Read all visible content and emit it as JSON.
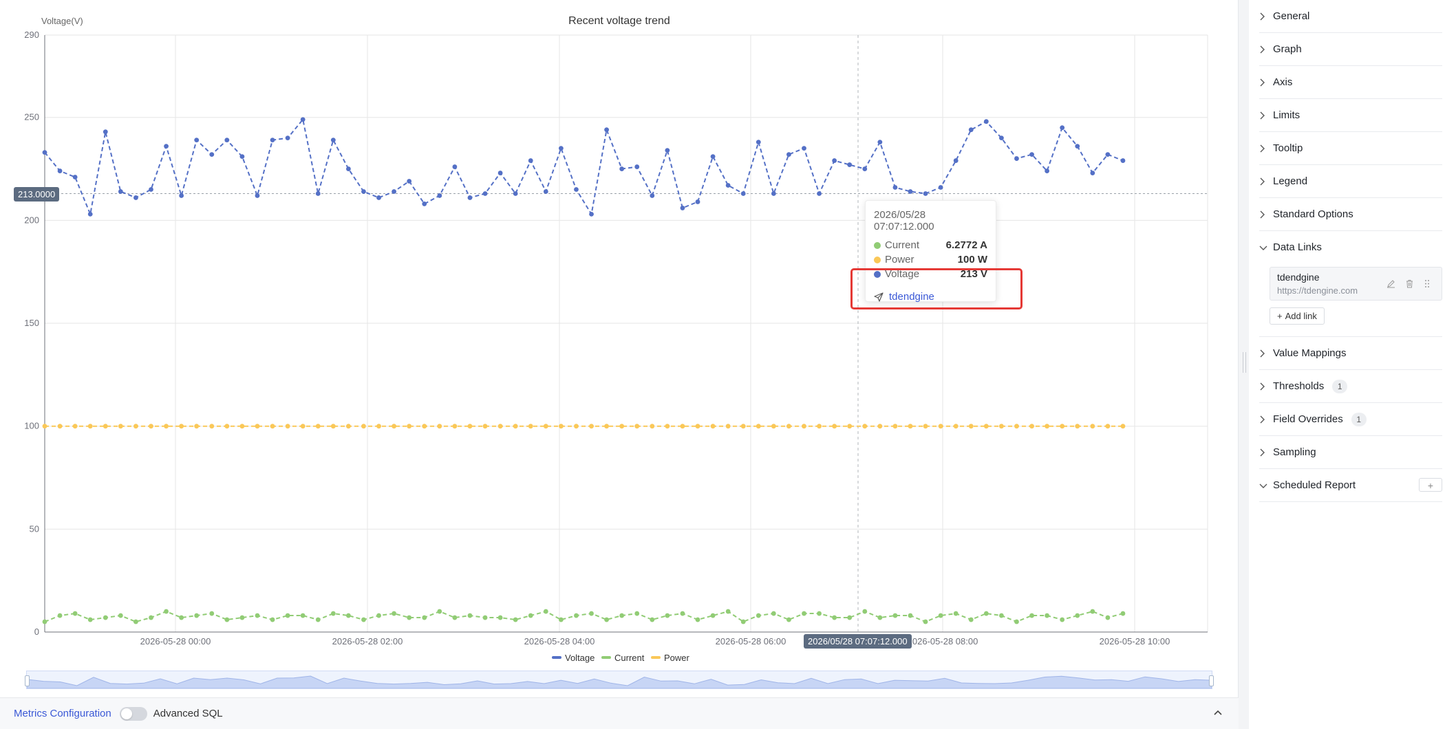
{
  "chart": {
    "title": "Recent voltage trend",
    "y_axis_title": "Voltage(V)",
    "y_pointer_label": "213.0000",
    "x_pointer_label": "2026/05/28 07:07:12.000"
  },
  "tooltip": {
    "time": "2026/05/28 07:07:12.000",
    "rows": [
      {
        "name": "Current",
        "value": "6.2772 A",
        "color": "#91cc75"
      },
      {
        "name": "Power",
        "value": "100 W",
        "color": "#fac858"
      },
      {
        "name": "Voltage",
        "value": "213 V",
        "color": "#5470c6"
      }
    ],
    "link_label": "tdendgine"
  },
  "chart_data": {
    "type": "line",
    "title": "Recent voltage trend",
    "ylabel": "Voltage(V)",
    "xlabel": "",
    "ylim": [
      0,
      290
    ],
    "yticks": [
      0,
      50,
      100,
      150,
      200,
      250,
      290
    ],
    "xticks": [
      "2026-05-28 00:00",
      "2026-05-28 02:00",
      "2026-05-28 04:00",
      "2026-05-28 06:00",
      "2026-05-28 08:00",
      "2026-05-28 10:00"
    ],
    "x_start": "2026-05-27 22:38",
    "x_step_minutes": 9.67,
    "legend": "bottom-center",
    "grid": true,
    "line_style": "dashed",
    "markline_y": 213,
    "crosshair_x": "2026/05/28 07:07:12.000",
    "series": [
      {
        "name": "Voltage",
        "color": "#5470c6",
        "values": [
          233,
          224,
          221,
          203,
          243,
          214,
          211,
          215,
          236,
          212,
          239,
          232,
          239,
          231,
          212,
          239,
          240,
          249,
          213,
          239,
          225,
          214,
          211,
          214,
          219,
          208,
          212,
          226,
          211,
          213,
          223,
          213,
          229,
          214,
          235,
          215,
          203,
          244,
          225,
          226,
          212,
          234,
          206,
          209,
          231,
          217,
          213,
          238,
          213,
          232,
          235,
          213,
          229,
          227,
          225,
          238,
          216,
          214,
          213,
          216,
          229,
          244,
          248,
          240,
          230,
          232,
          224,
          245,
          236,
          223,
          232,
          229
        ]
      },
      {
        "name": "Current",
        "color": "#91cc75",
        "values": [
          5,
          8,
          9,
          6,
          7,
          8,
          5,
          7,
          10,
          7,
          8,
          9,
          6,
          7,
          8,
          6,
          8,
          8,
          6,
          9,
          8,
          6,
          8,
          9,
          7,
          7,
          10,
          7,
          8,
          7,
          7,
          6,
          8,
          10,
          6,
          8,
          9,
          6,
          8,
          9,
          6,
          8,
          9,
          6,
          8,
          10,
          5,
          8,
          9,
          6,
          9,
          9,
          7,
          7,
          10,
          7,
          8,
          8,
          5,
          8,
          9,
          6,
          9,
          8,
          5,
          8,
          8,
          6,
          8,
          10,
          7,
          9
        ]
      },
      {
        "name": "Power",
        "color": "#fac858",
        "values": [
          100,
          100,
          100,
          100,
          100,
          100,
          100,
          100,
          100,
          100,
          100,
          100,
          100,
          100,
          100,
          100,
          100,
          100,
          100,
          100,
          100,
          100,
          100,
          100,
          100,
          100,
          100,
          100,
          100,
          100,
          100,
          100,
          100,
          100,
          100,
          100,
          100,
          100,
          100,
          100,
          100,
          100,
          100,
          100,
          100,
          100,
          100,
          100,
          100,
          100,
          100,
          100,
          100,
          100,
          100,
          100,
          100,
          100,
          100,
          100,
          100,
          100,
          100,
          100,
          100,
          100,
          100,
          100,
          100,
          100,
          100,
          100
        ]
      }
    ]
  },
  "bottom_bar": {
    "metrics_label": "Metrics Configuration",
    "advanced_sql_label": "Advanced SQL",
    "advanced_sql_enabled": false
  },
  "options": {
    "sections_top": [
      {
        "label": "General"
      },
      {
        "label": "Graph"
      },
      {
        "label": "Axis"
      },
      {
        "label": "Limits"
      },
      {
        "label": "Tooltip"
      },
      {
        "label": "Legend"
      },
      {
        "label": "Standard Options"
      }
    ],
    "data_links": {
      "label": "Data Links",
      "link_title": "tdendgine",
      "link_url": "https://tdengine.com",
      "add_label": "Add link"
    },
    "value_mappings": {
      "label": "Value Mappings"
    },
    "thresholds": {
      "label": "Thresholds",
      "badge": "1"
    },
    "field_overrides": {
      "label": "Field Overrides",
      "badge": "1"
    },
    "sampling": {
      "label": "Sampling"
    },
    "scheduled_report": {
      "label": "Scheduled Report",
      "add": "+"
    }
  }
}
